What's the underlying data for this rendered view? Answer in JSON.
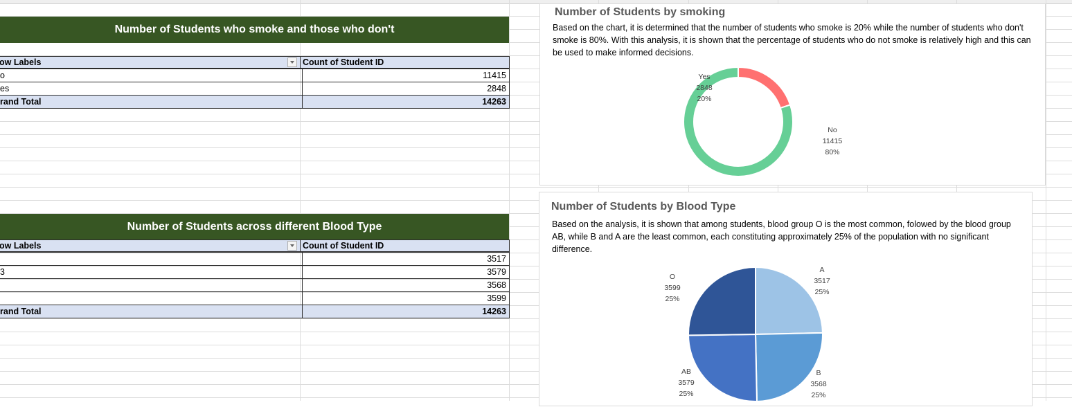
{
  "smoking_table": {
    "banner": "Number of Students who smoke and those who don't",
    "row_labels_header": "ow Labels",
    "value_header": "Count of Student ID",
    "rows": [
      {
        "label": "o",
        "value": "11415"
      },
      {
        "label": "es",
        "value": "2848"
      }
    ],
    "grand_total_label": "rand Total",
    "grand_total_value": "14263"
  },
  "blood_table": {
    "banner": "Number of Students across different Blood Type",
    "row_labels_header": "ow Labels",
    "value_header": "Count of Student ID",
    "rows": [
      {
        "label": "",
        "value": "3517"
      },
      {
        "label": "3",
        "value": "3579"
      },
      {
        "label": "",
        "value": "3568"
      },
      {
        "label": "",
        "value": "3599"
      }
    ],
    "grand_total_label": "rand Total",
    "grand_total_value": "14263"
  },
  "smoking_chart": {
    "title": "Number of Students by smoking",
    "description": "Based on the chart, it is determined that the number of students who smoke is 20% while the number of students who don't smoke is 80%. With this analysis, it is shown that the percentage of students who do not smoke is relatively high and this can be used to make informed decisions.",
    "labels": [
      {
        "name": "Yes",
        "value": "2848",
        "pct": "20%"
      },
      {
        "name": "No",
        "value": "11415",
        "pct": "80%"
      }
    ],
    "colors": {
      "Yes": "#ff7070",
      "No": "#66cf96"
    }
  },
  "blood_chart": {
    "title": "Number of Students by Blood Type",
    "description": "Based on the analysis, it is shown that among students, blood group O is the most common,  folowed by the blood group AB, while B and A are the least common, each constituting approximately 25% of the population with no significant difference.",
    "labels": [
      {
        "name": "O",
        "value": "3599",
        "pct": "25%"
      },
      {
        "name": "A",
        "value": "3517",
        "pct": "25%"
      },
      {
        "name": "AB",
        "value": "3579",
        "pct": "25%"
      },
      {
        "name": "B",
        "value": "3568",
        "pct": "25%"
      }
    ],
    "colors": {
      "A": "#9dc3e6",
      "B": "#5b9bd5",
      "AB": "#4472c4",
      "O": "#2f5597"
    }
  },
  "chart_data": [
    {
      "type": "pie",
      "title": "Number of Students by smoking",
      "style": "doughnut",
      "categories": [
        "Yes",
        "No"
      ],
      "values": [
        2848,
        11415
      ],
      "percentages": [
        20,
        80
      ]
    },
    {
      "type": "pie",
      "title": "Number of Students by Blood Type",
      "categories": [
        "A",
        "B",
        "AB",
        "O"
      ],
      "values": [
        3517,
        3568,
        3579,
        3599
      ],
      "percentages": [
        25,
        25,
        25,
        25
      ]
    }
  ]
}
